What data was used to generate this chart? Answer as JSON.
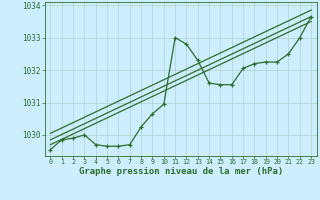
{
  "hours": [
    0,
    1,
    2,
    3,
    4,
    5,
    6,
    7,
    8,
    9,
    10,
    11,
    12,
    13,
    14,
    15,
    16,
    17,
    18,
    19,
    20,
    21,
    22,
    23
  ],
  "pressure": [
    1029.55,
    1029.85,
    1029.9,
    1030.0,
    1029.7,
    1029.65,
    1029.65,
    1029.7,
    1030.25,
    1030.65,
    1030.95,
    1033.0,
    1032.8,
    1032.3,
    1031.6,
    1031.55,
    1031.55,
    1032.05,
    1032.2,
    1032.25,
    1032.25,
    1032.5,
    1033.0,
    1033.65
  ],
  "trend_lines": [
    [
      1029.7,
      1033.5
    ],
    [
      1029.85,
      1033.65
    ],
    [
      1030.05,
      1033.85
    ]
  ],
  "line_color": "#2d6e2d",
  "bg_color": "#cceeff",
  "grid_color": "#b0d0d0",
  "label_color": "#2d6e2d",
  "xlabel": "Graphe pression niveau de la mer (hPa)",
  "ylim": [
    1029.35,
    1034.1
  ],
  "yticks": [
    1030,
    1031,
    1032,
    1033,
    1034
  ],
  "xticks": [
    0,
    1,
    2,
    3,
    4,
    5,
    6,
    7,
    8,
    9,
    10,
    11,
    12,
    13,
    14,
    15,
    16,
    17,
    18,
    19,
    20,
    21,
    22,
    23
  ]
}
